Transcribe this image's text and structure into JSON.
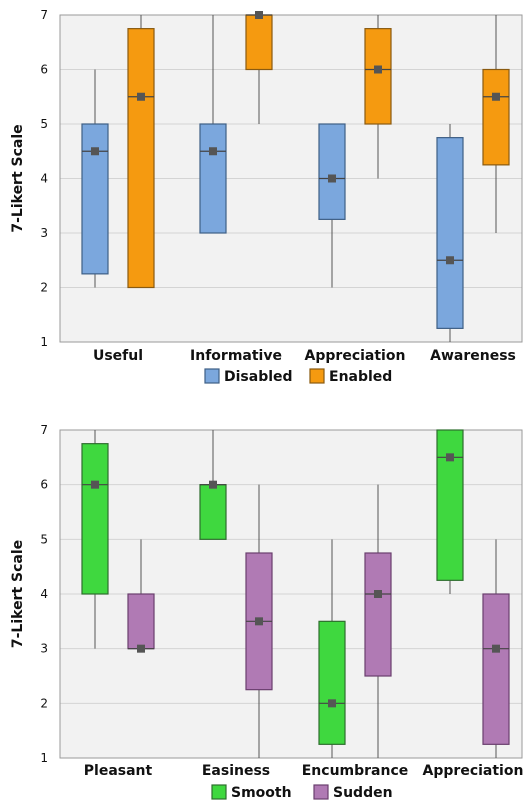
{
  "chart_data": [
    {
      "type": "box",
      "ylabel": "7-Likert Scale",
      "ylim": [
        1,
        7
      ],
      "yticks": [
        1,
        2,
        3,
        4,
        5,
        6,
        7
      ],
      "grid": true,
      "legend_position": "bottom",
      "categories": [
        "Useful",
        "Informative",
        "Appreciation",
        "Awareness"
      ],
      "series": [
        {
          "name": "Disabled",
          "color": "#7BA7DD",
          "stroke": "#3E5F86",
          "boxes": [
            {
              "min": 2,
              "q1": 2.25,
              "median": 4.5,
              "mean": 4.5,
              "q3": 5,
              "max": 6
            },
            {
              "min": 3,
              "q1": 3,
              "median": 4.5,
              "mean": 4.5,
              "q3": 5,
              "max": 7
            },
            {
              "min": 2,
              "q1": 3.25,
              "median": 4,
              "mean": 4,
              "q3": 5,
              "max": 5
            },
            {
              "min": 1,
              "q1": 1.25,
              "median": 2.5,
              "mean": 2.5,
              "q3": 4.75,
              "max": 5
            }
          ]
        },
        {
          "name": "Enabled",
          "color": "#F59A10",
          "stroke": "#8A5A10",
          "boxes": [
            {
              "min": 2,
              "q1": 2,
              "median": 5.5,
              "mean": 5.5,
              "q3": 6.75,
              "max": 7
            },
            {
              "min": 5,
              "q1": 6,
              "median": 7,
              "mean": 7,
              "q3": 7,
              "max": 7
            },
            {
              "min": 4,
              "q1": 5,
              "median": 6,
              "mean": 6,
              "q3": 6.75,
              "max": 7
            },
            {
              "min": 3,
              "q1": 4.25,
              "median": 5.5,
              "mean": 5.5,
              "q3": 6,
              "max": 7
            }
          ]
        }
      ]
    },
    {
      "type": "box",
      "ylabel": "7-Likert Scale",
      "ylim": [
        1,
        7
      ],
      "yticks": [
        1,
        2,
        3,
        4,
        5,
        6,
        7
      ],
      "grid": true,
      "legend_position": "bottom",
      "categories": [
        "Pleasant",
        "Easiness",
        "Encumbrance",
        "Appreciation"
      ],
      "series": [
        {
          "name": "Smooth",
          "color": "#3FD83F",
          "stroke": "#2E6E2E",
          "boxes": [
            {
              "min": 3,
              "q1": 4,
              "median": 6,
              "mean": 6,
              "q3": 6.75,
              "max": 7
            },
            {
              "min": 5,
              "q1": 5,
              "median": 6,
              "mean": 6,
              "q3": 6,
              "max": 7
            },
            {
              "min": 1,
              "q1": 1.25,
              "median": 2,
              "mean": 2,
              "q3": 3.5,
              "max": 5
            },
            {
              "min": 4,
              "q1": 4.25,
              "median": 6.5,
              "mean": 6.5,
              "q3": 7,
              "max": 7
            }
          ]
        },
        {
          "name": "Sudden",
          "color": "#B07AB4",
          "stroke": "#6A3F6E",
          "boxes": [
            {
              "min": 3,
              "q1": 3,
              "median": 3,
              "mean": 3,
              "q3": 4,
              "max": 5
            },
            {
              "min": 1,
              "q1": 2.25,
              "median": 3.5,
              "mean": 3.5,
              "q3": 4.75,
              "max": 6
            },
            {
              "min": 1,
              "q1": 2.5,
              "median": 4,
              "mean": 4,
              "q3": 4.75,
              "max": 6
            },
            {
              "min": 1,
              "q1": 1.25,
              "median": 3,
              "mean": 3,
              "q3": 4,
              "max": 5
            }
          ]
        }
      ]
    }
  ]
}
